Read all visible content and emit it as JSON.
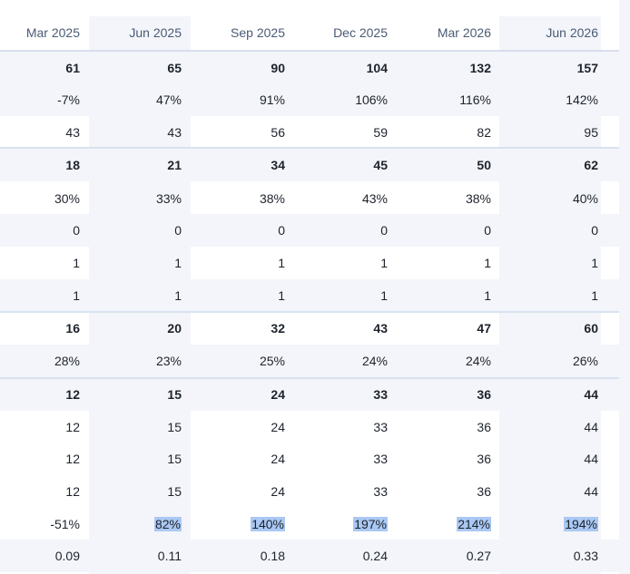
{
  "columns": [
    "Mar 2025",
    "Jun 2025",
    "Sep 2025",
    "Dec 2025",
    "Mar 2026",
    "Jun 2026"
  ],
  "rows": [
    {
      "values": [
        "61",
        "65",
        "90",
        "104",
        "132",
        "157"
      ],
      "bold": true,
      "shaded": true
    },
    {
      "values": [
        "-7%",
        "47%",
        "91%",
        "106%",
        "116%",
        "142%"
      ],
      "bold": false,
      "shaded": true
    },
    {
      "values": [
        "43",
        "43",
        "56",
        "59",
        "82",
        "95"
      ],
      "bold": false,
      "shaded": false
    },
    {
      "values": [
        "18",
        "21",
        "34",
        "45",
        "50",
        "62"
      ],
      "bold": true,
      "shaded": true
    },
    {
      "values": [
        "30%",
        "33%",
        "38%",
        "43%",
        "38%",
        "40%"
      ],
      "bold": false,
      "shaded": false
    },
    {
      "values": [
        "0",
        "0",
        "0",
        "0",
        "0",
        "0"
      ],
      "bold": false,
      "shaded": true
    },
    {
      "values": [
        "1",
        "1",
        "1",
        "1",
        "1",
        "1"
      ],
      "bold": false,
      "shaded": false
    },
    {
      "values": [
        "1",
        "1",
        "1",
        "1",
        "1",
        "1"
      ],
      "bold": false,
      "shaded": true
    },
    {
      "values": [
        "16",
        "20",
        "32",
        "43",
        "47",
        "60"
      ],
      "bold": true,
      "shaded": false
    },
    {
      "values": [
        "28%",
        "23%",
        "25%",
        "24%",
        "24%",
        "26%"
      ],
      "bold": false,
      "shaded": true
    },
    {
      "values": [
        "12",
        "15",
        "24",
        "33",
        "36",
        "44"
      ],
      "bold": true,
      "shaded": true
    },
    {
      "values": [
        "12",
        "15",
        "24",
        "33",
        "36",
        "44"
      ],
      "bold": false,
      "shaded": false
    },
    {
      "values": [
        "12",
        "15",
        "24",
        "33",
        "36",
        "44"
      ],
      "bold": false,
      "shaded": false
    },
    {
      "values": [
        "12",
        "15",
        "24",
        "33",
        "36",
        "44"
      ],
      "bold": false,
      "shaded": false
    },
    {
      "values": [
        "-51%",
        "82%",
        "140%",
        "197%",
        "214%",
        "194%"
      ],
      "bold": false,
      "shaded": false,
      "selected_columns": [
        1,
        2,
        3,
        4,
        5
      ]
    },
    {
      "values": [
        "0.09",
        "0.11",
        "0.18",
        "0.24",
        "0.27",
        "0.33"
      ],
      "bold": false,
      "shaded": true
    }
  ],
  "colors": {
    "selection": "#aac8f3",
    "shaded_row": "#f4f5fa",
    "rule": "#d7dfec"
  }
}
